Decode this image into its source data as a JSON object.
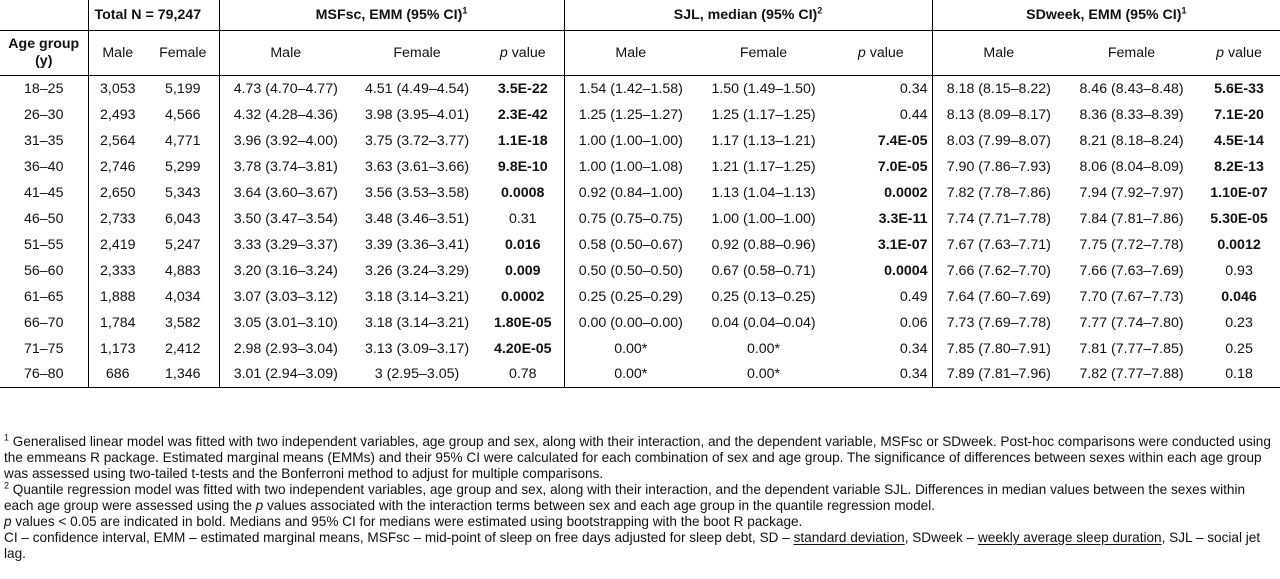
{
  "header": {
    "total": "Total N = 79,247",
    "msfsc": "MSFsc, EMM (95% CI)",
    "msfsc_sup": "1",
    "sjl": "SJL, median (95% CI)",
    "sjl_sup": "2",
    "sdweek": "SDweek, EMM (95% CI)",
    "sdweek_sup": "1",
    "age_group": "Age group (y)",
    "male": "Male",
    "female": "Female",
    "p": "p",
    "value": " value"
  },
  "rows": [
    {
      "age": "18–25",
      "n_m": "3,053",
      "n_f": "5,199",
      "msf_m": "4.73 (4.70–4.77)",
      "msf_f": "4.51 (4.49–4.54)",
      "msf_p": "3.5E-22",
      "msf_b": true,
      "sjl_m": "1.54 (1.42–1.58)",
      "sjl_f": "1.50 (1.49–1.50)",
      "sjl_p": "0.34",
      "sjl_b": false,
      "sd_m": "8.18 (8.15–8.22)",
      "sd_f": "8.46 (8.43–8.48)",
      "sd_p": "5.6E-33",
      "sd_b": true
    },
    {
      "age": "26–30",
      "n_m": "2,493",
      "n_f": "4,566",
      "msf_m": "4.32 (4.28–4.36)",
      "msf_f": "3.98 (3.95–4.01)",
      "msf_p": "2.3E-42",
      "msf_b": true,
      "sjl_m": "1.25 (1.25–1.27)",
      "sjl_f": "1.25 (1.17–1.25)",
      "sjl_p": "0.44",
      "sjl_b": false,
      "sd_m": "8.13 (8.09–8.17)",
      "sd_f": "8.36 (8.33–8.39)",
      "sd_p": "7.1E-20",
      "sd_b": true
    },
    {
      "age": "31–35",
      "n_m": "2,564",
      "n_f": "4,771",
      "msf_m": "3.96 (3.92–4.00)",
      "msf_f": "3.75 (3.72–3.77)",
      "msf_p": "1.1E-18",
      "msf_b": true,
      "sjl_m": "1.00 (1.00–1.00)",
      "sjl_f": "1.17 (1.13–1.21)",
      "sjl_p": "7.4E-05",
      "sjl_b": true,
      "sd_m": "8.03 (7.99–8.07)",
      "sd_f": "8.21 (8.18–8.24)",
      "sd_p": "4.5E-14",
      "sd_b": true
    },
    {
      "age": "36–40",
      "n_m": "2,746",
      "n_f": "5,299",
      "msf_m": "3.78 (3.74–3.81)",
      "msf_f": "3.63 (3.61–3.66)",
      "msf_p": "9.8E-10",
      "msf_b": true,
      "sjl_m": "1.00 (1.00–1.08)",
      "sjl_f": "1.21 (1.17–1.25)",
      "sjl_p": "7.0E-05",
      "sjl_b": true,
      "sd_m": "7.90 (7.86–7.93)",
      "sd_f": "8.06 (8.04–8.09)",
      "sd_p": "8.2E-13",
      "sd_b": true
    },
    {
      "age": "41–45",
      "n_m": "2,650",
      "n_f": "5,343",
      "msf_m": "3.64 (3.60–3.67)",
      "msf_f": "3.56 (3.53–3.58)",
      "msf_p": "0.0008",
      "msf_b": true,
      "sjl_m": "0.92 (0.84–1.00)",
      "sjl_f": "1.13 (1.04–1.13)",
      "sjl_p": "0.0002",
      "sjl_b": true,
      "sd_m": "7.82 (7.78–7.86)",
      "sd_f": "7.94 (7.92–7.97)",
      "sd_p": "1.10E-07",
      "sd_b": true
    },
    {
      "age": "46–50",
      "n_m": "2,733",
      "n_f": "6,043",
      "msf_m": "3.50 (3.47–3.54)",
      "msf_f": "3.48 (3.46–3.51)",
      "msf_p": "0.31",
      "msf_b": false,
      "sjl_m": "0.75 (0.75–0.75)",
      "sjl_f": "1.00 (1.00–1.00)",
      "sjl_p": "3.3E-11",
      "sjl_b": true,
      "sd_m": "7.74 (7.71–7.78)",
      "sd_f": "7.84 (7.81–7.86)",
      "sd_p": "5.30E-05",
      "sd_b": true
    },
    {
      "age": "51–55",
      "n_m": "2,419",
      "n_f": "5,247",
      "msf_m": "3.33 (3.29–3.37)",
      "msf_f": "3.39 (3.36–3.41)",
      "msf_p": "0.016",
      "msf_b": true,
      "sjl_m": "0.58 (0.50–0.67)",
      "sjl_f": "0.92 (0.88–0.96)",
      "sjl_p": "3.1E-07",
      "sjl_b": true,
      "sd_m": "7.67 (7.63–7.71)",
      "sd_f": "7.75 (7.72–7.78)",
      "sd_p": "0.0012",
      "sd_b": true
    },
    {
      "age": "56–60",
      "n_m": "2,333",
      "n_f": "4,883",
      "msf_m": "3.20 (3.16–3.24)",
      "msf_f": "3.26 (3.24–3.29)",
      "msf_p": "0.009",
      "msf_b": true,
      "sjl_m": "0.50 (0.50–0.50)",
      "sjl_f": "0.67 (0.58–0.71)",
      "sjl_p": "0.0004",
      "sjl_b": true,
      "sd_m": "7.66 (7.62–7.70)",
      "sd_f": "7.66 (7.63–7.69)",
      "sd_p": "0.93",
      "sd_b": false
    },
    {
      "age": "61–65",
      "n_m": "1,888",
      "n_f": "4,034",
      "msf_m": "3.07 (3.03–3.12)",
      "msf_f": "3.18 (3.14–3.21)",
      "msf_p": "0.0002",
      "msf_b": true,
      "sjl_m": "0.25 (0.25–0.29)",
      "sjl_f": "0.25 (0.13–0.25)",
      "sjl_p": "0.49",
      "sjl_b": false,
      "sd_m": "7.64 (7.60–7.69)",
      "sd_f": "7.70 (7.67–7.73)",
      "sd_p": "0.046",
      "sd_b": true
    },
    {
      "age": "66–70",
      "n_m": "1,784",
      "n_f": "3,582",
      "msf_m": "3.05 (3.01–3.10)",
      "msf_f": "3.18 (3.14–3.21)",
      "msf_p": "1.80E-05",
      "msf_b": true,
      "sjl_m": "0.00 (0.00–0.00)",
      "sjl_f": "0.04 (0.04–0.04)",
      "sjl_p": "0.06",
      "sjl_b": false,
      "sd_m": "7.73 (7.69–7.78)",
      "sd_f": "7.77 (7.74–7.80)",
      "sd_p": "0.23",
      "sd_b": false
    },
    {
      "age": "71–75",
      "n_m": "1,173",
      "n_f": "2,412",
      "msf_m": "2.98 (2.93–3.04)",
      "msf_f": "3.13 (3.09–3.17)",
      "msf_p": "4.20E-05",
      "msf_b": true,
      "sjl_m": "0.00*",
      "sjl_f": "0.00*",
      "sjl_p": "0.34",
      "sjl_b": false,
      "sd_m": "7.85 (7.80–7.91)",
      "sd_f": "7.81 (7.77–7.85)",
      "sd_p": "0.25",
      "sd_b": false
    },
    {
      "age": "76–80",
      "n_m": "686",
      "n_f": "1,346",
      "msf_m": "3.01 (2.94–3.09)",
      "msf_f": "3 (2.95–3.05)",
      "msf_p": "0.78",
      "msf_b": false,
      "sjl_m": "0.00*",
      "sjl_f": "0.00*",
      "sjl_p": "0.34",
      "sjl_b": false,
      "sd_m": "7.89 (7.81–7.96)",
      "sd_f": "7.82 (7.77–7.88)",
      "sd_p": "0.18",
      "sd_b": false
    }
  ],
  "notes": {
    "n1_sup": "1",
    "n1": " Generalised linear model was fitted with two independent variables, age group and sex, along with their interaction, and the dependent variable, MSFsc or SDweek. Post-hoc comparisons were conducted using the emmeans R package. Estimated marginal means (EMMs) and their 95% CI were calculated for each combination of sex and age group. The significance of differences between sexes within each age group was assessed using two-tailed t-tests and the Bonferroni method to adjust for multiple comparisons.",
    "n2_sup": "2",
    "n2a": " Quantile regression model was fitted with two independent variables, age group and sex, along with their interaction, and the dependent variable SJL. Differences in median values between the sexes within each age group were assessed using the ",
    "n2_p": "p",
    "n2b": " values associated with the interaction terms between sex and each age group in the quantile regression model.",
    "n3_p": "p",
    "n3": " values < 0.05 are indicated in bold. Medians and 95% CI for medians were estimated using bootstrapping with the boot R package.",
    "abbr_a": "CI – confidence interval, EMM – estimated marginal means, ",
    "abbr_b": "MSFsc – mid-point of sleep on free days adjusted for sleep debt, SD – ",
    "abbr_c": "standard deviation",
    "abbr_d": ", SDweek – ",
    "abbr_e": "weekly average sleep duration",
    "abbr_f": ", SJL – social jet lag."
  }
}
